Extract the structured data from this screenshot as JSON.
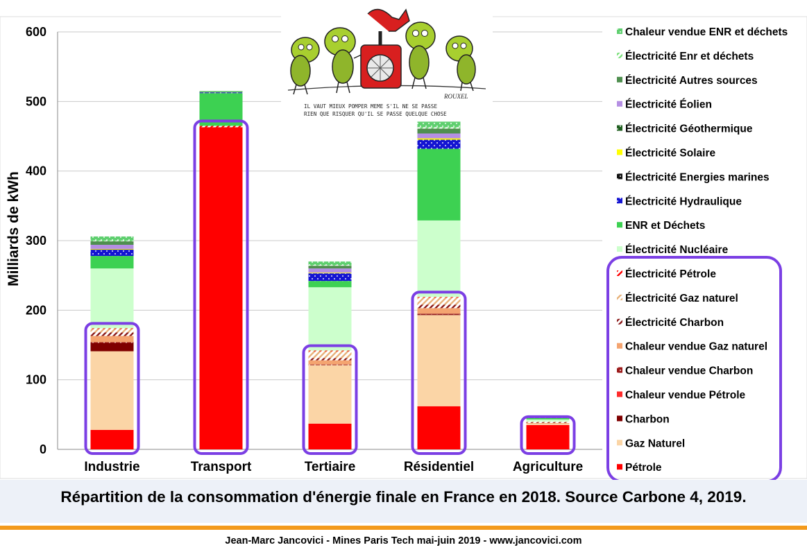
{
  "chart_data": {
    "type": "bar",
    "stacked": true,
    "ylabel": "Milliards de kWh",
    "ylim": [
      0,
      600
    ],
    "yticks": [
      0,
      100,
      200,
      300,
      400,
      500,
      600
    ],
    "grid": true,
    "legend_position": "right",
    "categories": [
      "Industrie",
      "Transport",
      "Tertiaire",
      "Résidentiel",
      "Agriculture"
    ],
    "series": [
      {
        "name": "Pétrole",
        "color": "#ff0000",
        "pattern": "solid",
        "values": [
          28,
          463,
          37,
          62,
          35
        ]
      },
      {
        "name": "Gaz Naturel",
        "color": "#fbd5a6",
        "pattern": "solid",
        "values": [
          113,
          0,
          84,
          131,
          2
        ]
      },
      {
        "name": "Charbon",
        "color": "#7f0000",
        "pattern": "solid",
        "values": [
          12,
          0,
          0,
          1,
          0
        ]
      },
      {
        "name": "Chaleur vendue Pétrole",
        "color": "#ff2b2b",
        "pattern": "solid",
        "values": [
          0,
          0,
          0,
          0,
          0
        ]
      },
      {
        "name": "Chaleur vendue Charbon",
        "color": "#9b1a1a",
        "pattern": "dots",
        "values": [
          1,
          0,
          1,
          1,
          0
        ]
      },
      {
        "name": "Chaleur vendue Gaz naturel",
        "color": "#f4a470",
        "pattern": "solid",
        "values": [
          9,
          0,
          6,
          8,
          1
        ]
      },
      {
        "name": "Électricité Charbon",
        "color": "#8b1a1a",
        "pattern": "hatch",
        "values": [
          5,
          0,
          3,
          5,
          1
        ]
      },
      {
        "name": "Électricité Gaz naturel",
        "color": "#e8b27a",
        "pattern": "hatch",
        "values": [
          5,
          0,
          10,
          10,
          1
        ]
      },
      {
        "name": "Électricité Pétrole",
        "color": "#ff0000",
        "pattern": "hatch",
        "values": [
          1,
          2,
          1,
          1,
          0
        ]
      },
      {
        "name": "Électricité Nucléaire",
        "color": "#ccffcc",
        "pattern": "solid",
        "values": [
          86,
          0,
          91,
          110,
          3
        ]
      },
      {
        "name": "ENR et Déchets",
        "color": "#3dd152",
        "pattern": "solid",
        "values": [
          18,
          47,
          9,
          103,
          2
        ]
      },
      {
        "name": "Électricité Hydraulique",
        "color": "#1414d2",
        "pattern": "dots",
        "values": [
          9,
          1,
          11,
          13,
          1
        ]
      },
      {
        "name": "Électricité Energies marines",
        "color": "#111111",
        "pattern": "dots",
        "values": [
          0,
          0,
          0,
          0,
          0
        ]
      },
      {
        "name": "Électricité Solaire",
        "color": "#ffff00",
        "pattern": "solid",
        "values": [
          1,
          0,
          1,
          2,
          0
        ]
      },
      {
        "name": "Électricité Géothermique",
        "color": "#1f5f1f",
        "pattern": "dots",
        "values": [
          0,
          0,
          0,
          0,
          0
        ]
      },
      {
        "name": "Électricité Éolien",
        "color": "#b58fe3",
        "pattern": "solid",
        "values": [
          6,
          0,
          6,
          7,
          0
        ]
      },
      {
        "name": "Électricité Autres sources",
        "color": "#4f8f4f",
        "pattern": "solid",
        "values": [
          5,
          1,
          4,
          7,
          0
        ]
      },
      {
        "name": "Électricité Enr et déchets",
        "color": "#7be07b",
        "pattern": "hatch",
        "values": [
          1,
          0,
          1,
          2,
          0
        ]
      },
      {
        "name": "Chaleur vendue ENR et déchets",
        "color": "#5fcf6f",
        "pattern": "dots",
        "values": [
          6,
          1,
          5,
          8,
          1
        ]
      }
    ],
    "legend_order": [
      "Chaleur vendue ENR et déchets",
      "Électricité Enr et déchets",
      "Électricité Autres sources",
      "Électricité Éolien",
      "Électricité Géothermique",
      "Électricité Solaire",
      "Électricité Energies marines",
      "Électricité Hydraulique",
      "ENR et Déchets",
      "Électricité Nucléaire",
      "Électricité Pétrole",
      "Électricité Gaz naturel",
      "Électricité Charbon",
      "Chaleur vendue Gaz naturel",
      "Chaleur vendue Charbon",
      "Chaleur vendue Pétrole",
      "Charbon",
      "Gaz Naturel",
      "Pétrole"
    ],
    "highlight_color": "#7b3fe4",
    "highlighted_series": [
      "Pétrole",
      "Gaz Naturel",
      "Charbon",
      "Chaleur vendue Pétrole",
      "Chaleur vendue Charbon",
      "Chaleur vendue Gaz naturel",
      "Électricité Charbon",
      "Électricité Gaz naturel",
      "Électricité Pétrole"
    ]
  },
  "caption": "Répartition de la consommation d'énergie finale en France en 2018. Source Carbone 4, 2019.",
  "footer": "Jean-Marc Jancovici - Mines Paris Tech mai-juin 2019 - www.jancovici.com",
  "cartoon": {
    "caption_line1": "IL VAUT MIEUX POMPER MEME S'IL NE SE PASSE",
    "caption_line2": "RIEN QUE RISQUER QU'IL SE PASSE QUELQUE CHOSE",
    "signature": "ROUXEL"
  }
}
